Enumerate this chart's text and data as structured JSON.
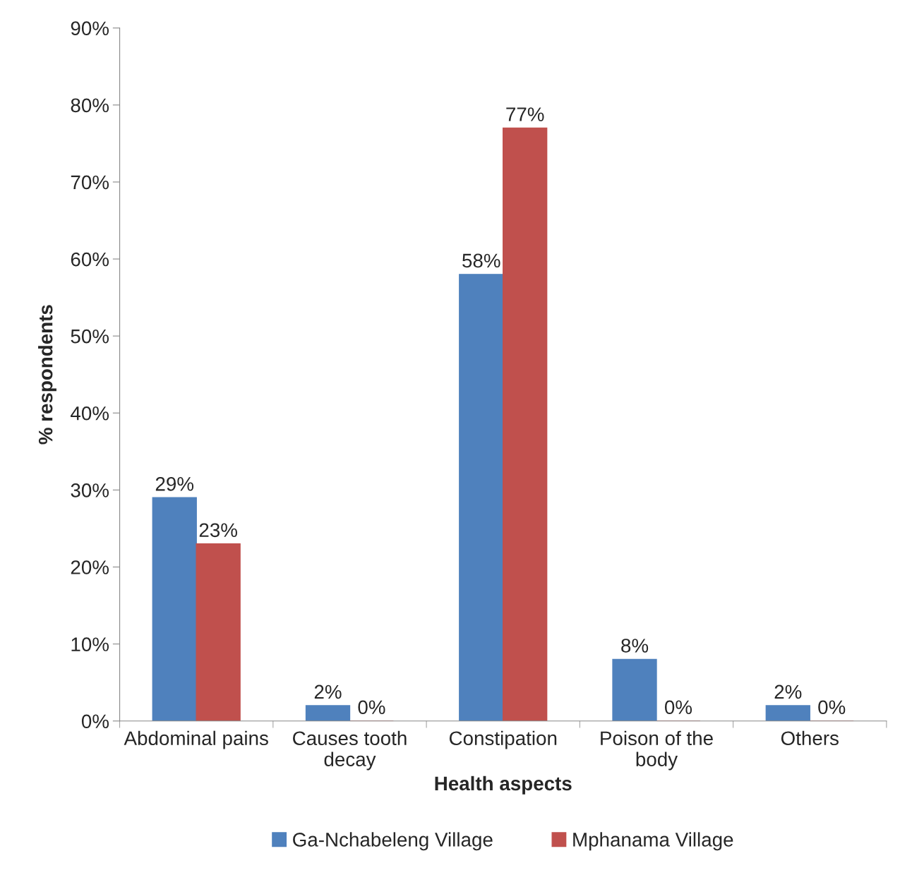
{
  "chart_data": {
    "type": "bar",
    "xlabel": "Health aspects",
    "ylabel": "% respondents",
    "categories": [
      "Abdominal pains",
      "Causes tooth\ndecay",
      "Constipation",
      "Poison of the\nbody",
      "Others"
    ],
    "series": [
      {
        "name": "Ga-Nchabeleng Village",
        "color": "#4f81bd",
        "values": [
          29,
          2,
          58,
          8,
          2
        ],
        "value_labels": [
          "29%",
          "2%",
          "58%",
          "8%",
          "2%"
        ]
      },
      {
        "name": "Mphanama Village",
        "color": "#c0504d",
        "values": [
          23,
          0,
          77,
          0,
          0
        ],
        "value_labels": [
          "23%",
          "0%",
          "77%",
          "0%",
          "0%"
        ]
      }
    ],
    "ylim": [
      0,
      90
    ],
    "yticks": [
      {
        "value": 0,
        "label": "0%"
      },
      {
        "value": 10,
        "label": "10%"
      },
      {
        "value": 20,
        "label": "20%"
      },
      {
        "value": 30,
        "label": "30%"
      },
      {
        "value": 40,
        "label": "40%"
      },
      {
        "value": 50,
        "label": "50%"
      },
      {
        "value": 60,
        "label": "60%"
      },
      {
        "value": 70,
        "label": "70%"
      },
      {
        "value": 80,
        "label": "80%"
      },
      {
        "value": 90,
        "label": "90%"
      }
    ],
    "grid": false,
    "legend": "bottom"
  }
}
